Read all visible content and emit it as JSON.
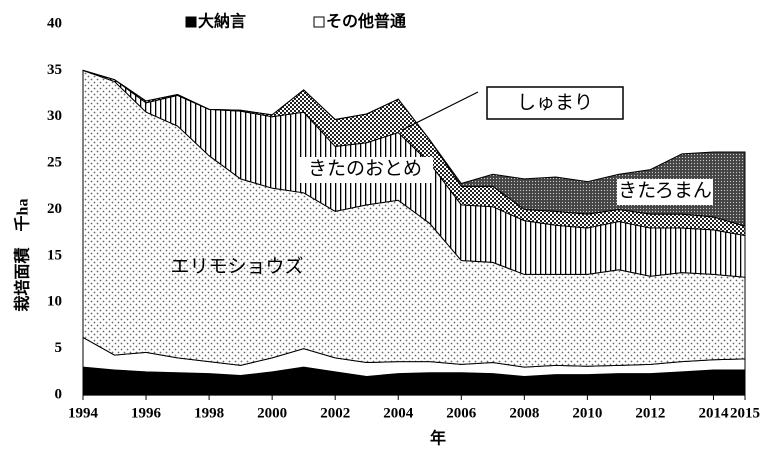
{
  "chart_data": {
    "type": "area",
    "x_label": "年",
    "y_label": "栽培面積　千ha",
    "x": [
      1994,
      1995,
      1996,
      1997,
      1998,
      1999,
      2000,
      2001,
      2002,
      2003,
      2004,
      2005,
      2006,
      2007,
      2008,
      2009,
      2010,
      2011,
      2012,
      2013,
      2014,
      2015
    ],
    "xlim": [
      1994,
      2015
    ],
    "xticks": [
      1994,
      1996,
      1998,
      2000,
      2002,
      2004,
      2006,
      2008,
      2010,
      2012,
      2014,
      2015
    ],
    "ylim": [
      0,
      40
    ],
    "yticks": [
      0,
      5,
      10,
      15,
      20,
      25,
      30,
      35,
      40
    ],
    "stacked": true,
    "series": [
      {
        "name": "大納言",
        "color": "#000000",
        "pattern": "solid",
        "legend": true,
        "values": [
          3.0,
          2.7,
          2.5,
          2.4,
          2.3,
          2.1,
          2.5,
          3.0,
          2.5,
          2.0,
          2.3,
          2.4,
          2.4,
          2.3,
          2.0,
          2.2,
          2.2,
          2.3,
          2.3,
          2.5,
          2.7,
          2.7
        ]
      },
      {
        "name": "その他普通",
        "color": "#ffffff",
        "pattern": "none",
        "legend": true,
        "values": [
          3.2,
          1.6,
          2.1,
          1.6,
          1.3,
          1.1,
          1.5,
          2.0,
          1.5,
          1.5,
          1.3,
          1.2,
          0.9,
          1.2,
          1.0,
          1.0,
          0.9,
          0.9,
          1.0,
          1.1,
          1.1,
          1.2
        ]
      },
      {
        "name": "エリモショウズ",
        "color": "#777777",
        "pattern": "dots",
        "legend": false,
        "values": [
          28.8,
          29.5,
          25.9,
          25.0,
          22.2,
          20.1,
          18.3,
          16.8,
          15.8,
          17.0,
          17.4,
          14.9,
          11.2,
          10.8,
          10.0,
          9.8,
          9.9,
          10.3,
          9.5,
          9.6,
          9.2,
          8.8
        ]
      },
      {
        "name": "きたのおとめ",
        "color": "#000000",
        "pattern": "vlines",
        "legend": false,
        "values": [
          0,
          0.2,
          1.0,
          3.3,
          5.0,
          7.3,
          7.7,
          8.7,
          7.0,
          6.7,
          7.3,
          6.5,
          6.0,
          6.0,
          5.8,
          5.3,
          5.0,
          5.2,
          5.2,
          4.8,
          4.8,
          4.5
        ]
      },
      {
        "name": "しゅまり",
        "color": "#333333",
        "pattern": "checker",
        "legend": false,
        "values": [
          0,
          0,
          0.2,
          0.1,
          0,
          0.1,
          0.2,
          2.4,
          2.9,
          3.1,
          3.6,
          2.5,
          2.0,
          2.2,
          1.2,
          1.5,
          1.5,
          1.3,
          1.5,
          1.5,
          1.4,
          1.0
        ]
      },
      {
        "name": "きたろまん",
        "color": "#222222",
        "pattern": "darkdots",
        "legend": false,
        "values": [
          0,
          0,
          0,
          0,
          0,
          0,
          0,
          0,
          0,
          0,
          0,
          0,
          0.3,
          1.3,
          3.3,
          3.7,
          3.5,
          3.8,
          4.8,
          6.5,
          7.0,
          8.0
        ]
      }
    ]
  }
}
